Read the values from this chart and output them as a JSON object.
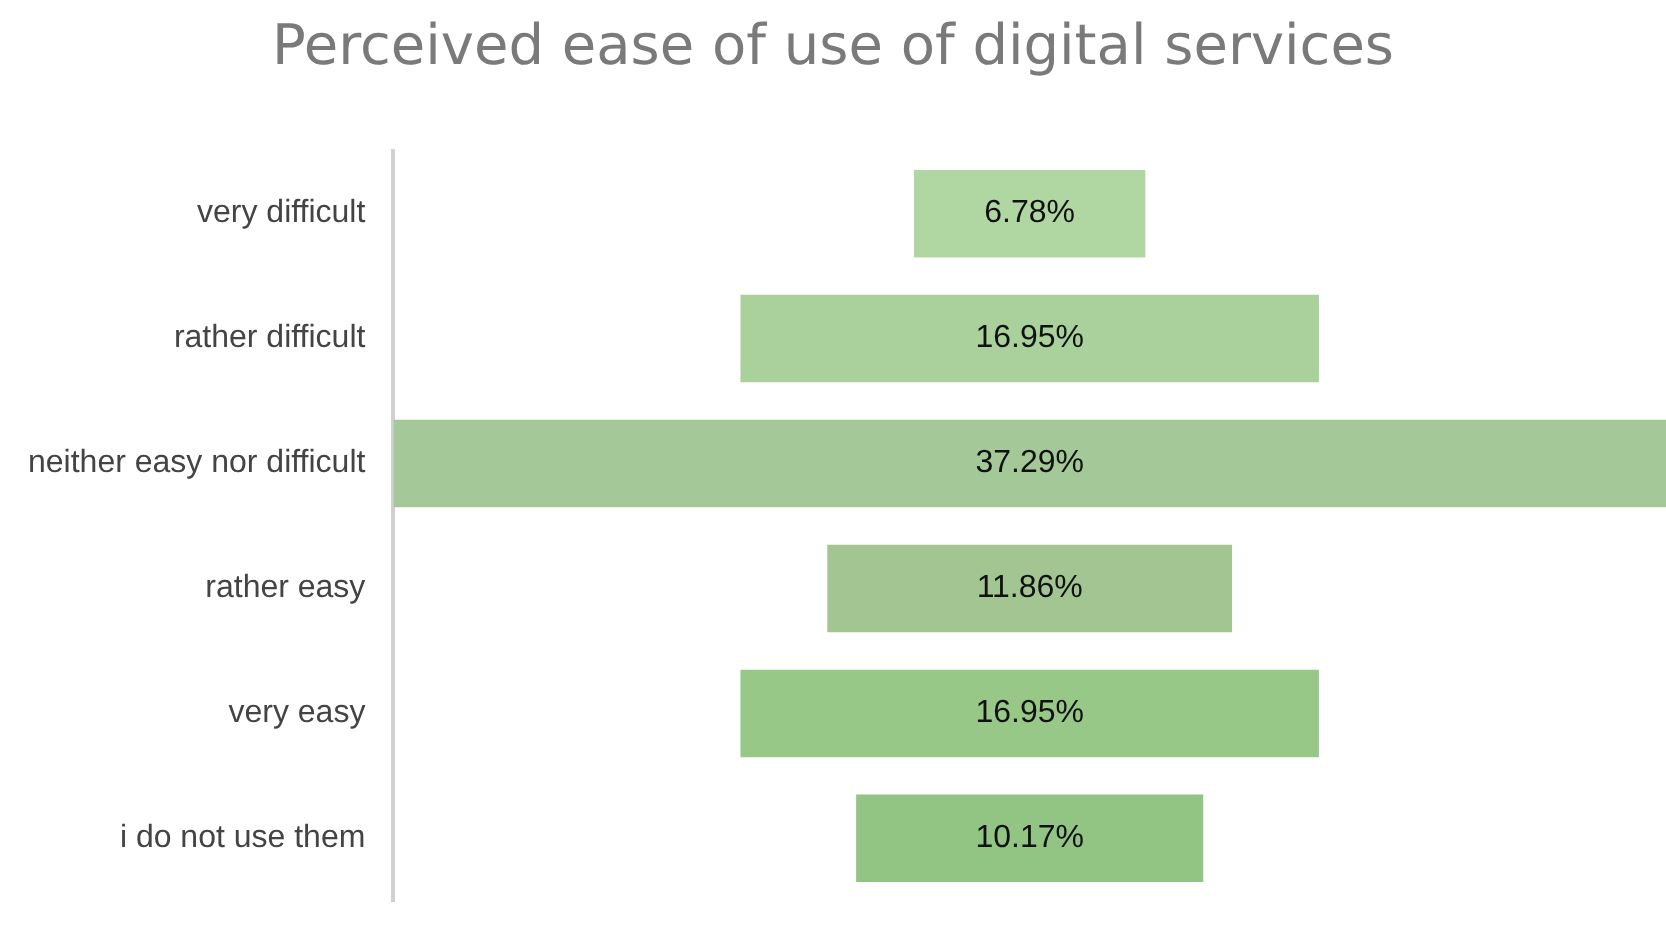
{
  "chart_data": {
    "type": "other",
    "title": "Perceived ease of use of digital services",
    "categories": [
      "very difficult",
      "rather difficult",
      "neither easy nor difficult",
      "rather easy",
      "very easy",
      "i do not use them"
    ],
    "values": [
      6.78,
      16.95,
      37.29,
      11.86,
      16.95,
      10.17
    ],
    "value_labels": [
      "6.78%",
      "16.95%",
      "37.29%",
      "11.86%",
      "16.95%",
      "10.17%"
    ],
    "colors": [
      "#b0d6a2",
      "#aad19c",
      "#a4c897",
      "#a2c592",
      "#98c888",
      "#92c483"
    ]
  }
}
